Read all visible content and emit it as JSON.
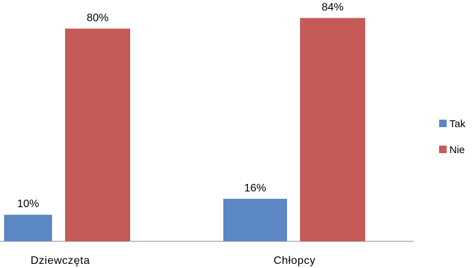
{
  "chart_data": {
    "type": "bar",
    "categories": [
      "Dziewczęta",
      "Chłopcy"
    ],
    "series": [
      {
        "name": "Tak",
        "values": [
          10,
          16
        ],
        "labels": [
          "10%",
          "16%"
        ],
        "color": "#5b87c4"
      },
      {
        "name": "Nie",
        "values": [
          80,
          84
        ],
        "labels": [
          "80%",
          "84%"
        ],
        "color": "#c55a56"
      }
    ],
    "title": "",
    "xlabel": "",
    "ylabel": "",
    "ylim": [
      0,
      90
    ],
    "grid": false,
    "legend_position": "right"
  }
}
